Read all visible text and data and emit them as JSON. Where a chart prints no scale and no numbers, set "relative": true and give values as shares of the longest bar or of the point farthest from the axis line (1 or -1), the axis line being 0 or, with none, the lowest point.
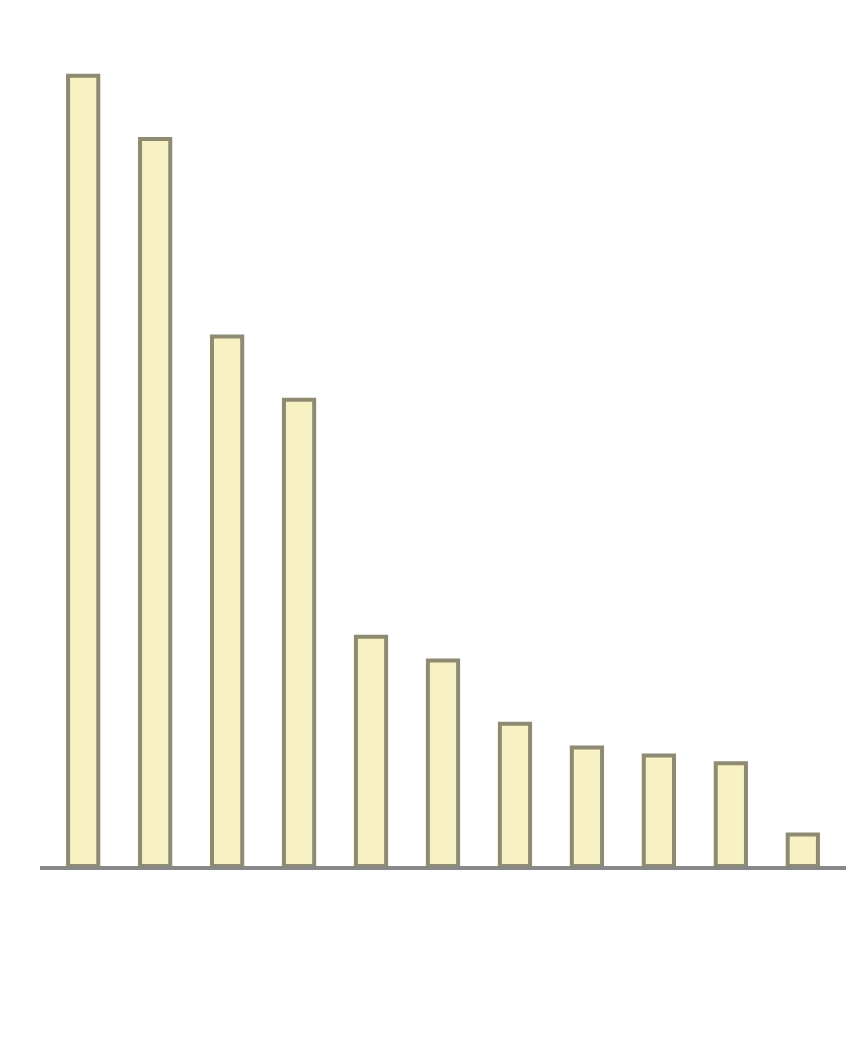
{
  "chart_data": {
    "type": "bar",
    "relative": true,
    "categories": [
      null,
      null,
      null,
      null,
      null,
      null,
      null,
      null,
      null,
      null,
      null
    ],
    "values": [
      1,
      0.92,
      0.67,
      0.59,
      0.29,
      0.26,
      0.18,
      0.15,
      0.14,
      0.13,
      0.04
    ],
    "color": "#f8f1c4"
  }
}
